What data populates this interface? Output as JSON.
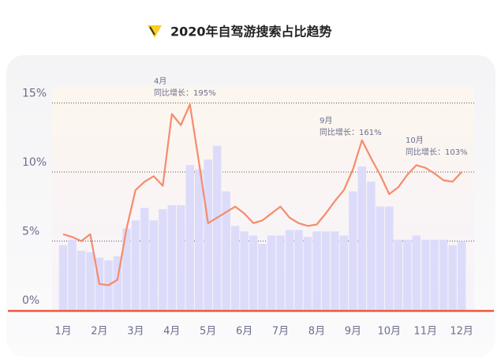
{
  "chart_data": {
    "type": "bar-line",
    "title": "2020年自驾游搜索占比趋势",
    "categories": [
      "1月",
      null,
      null,
      null,
      "2月",
      null,
      null,
      null,
      "3月",
      null,
      null,
      null,
      "4月",
      null,
      null,
      null,
      "5月",
      null,
      null,
      null,
      "6月",
      null,
      null,
      null,
      "7月",
      null,
      null,
      null,
      "8月",
      null,
      null,
      null,
      "9月",
      null,
      null,
      null,
      "10月",
      null,
      null,
      null,
      "11月",
      null,
      null,
      null,
      "12月"
    ],
    "series": [
      {
        "type": "bar",
        "color": "#dcdcfa",
        "values": [
          4.7,
          5.1,
          4.3,
          4.2,
          3.8,
          3.6,
          3.9,
          5.9,
          6.5,
          7.4,
          6.5,
          7.3,
          7.6,
          7.6,
          10.5,
          10.2,
          10.9,
          11.9,
          8.6,
          6.1,
          5.7,
          5.4,
          4.8,
          5.4,
          5.4,
          5.8,
          5.8,
          5.3,
          5.7,
          5.7,
          5.7,
          5.4,
          8.6,
          10.4,
          9.3,
          7.5,
          7.5,
          5.1,
          5.1,
          5.4,
          5.1,
          5.1,
          5.1,
          4.7,
          5.0
        ]
      },
      {
        "type": "line",
        "color": "#f58c6c",
        "values": [
          5.5,
          5.3,
          5.0,
          5.5,
          1.9,
          1.8,
          2.2,
          5.9,
          8.7,
          9.3,
          9.7,
          9.0,
          14.2,
          13.4,
          14.9,
          10.7,
          6.3,
          6.7,
          7.1,
          7.5,
          7.0,
          6.3,
          6.5,
          7.0,
          7.5,
          6.7,
          6.3,
          6.1,
          6.2,
          7.0,
          7.9,
          8.7,
          10.2,
          12.3,
          11.0,
          9.8,
          8.4,
          8.9,
          9.8,
          10.5,
          10.3,
          9.9,
          9.4,
          9.3,
          10.0
        ]
      }
    ],
    "ylim": [
      0,
      17
    ],
    "yticks": [
      {
        "value": 0,
        "label": "0%"
      },
      {
        "value": 5,
        "label": "5%"
      },
      {
        "value": 10,
        "label": "10%"
      },
      {
        "value": 15,
        "label": "15%"
      }
    ],
    "grid": true,
    "annotations": [
      {
        "month": "4月",
        "text": "同比增长：195%"
      },
      {
        "month": "9月",
        "text": "同比增长：161%"
      },
      {
        "month": "10月",
        "text": "同比增长：103%"
      }
    ]
  }
}
